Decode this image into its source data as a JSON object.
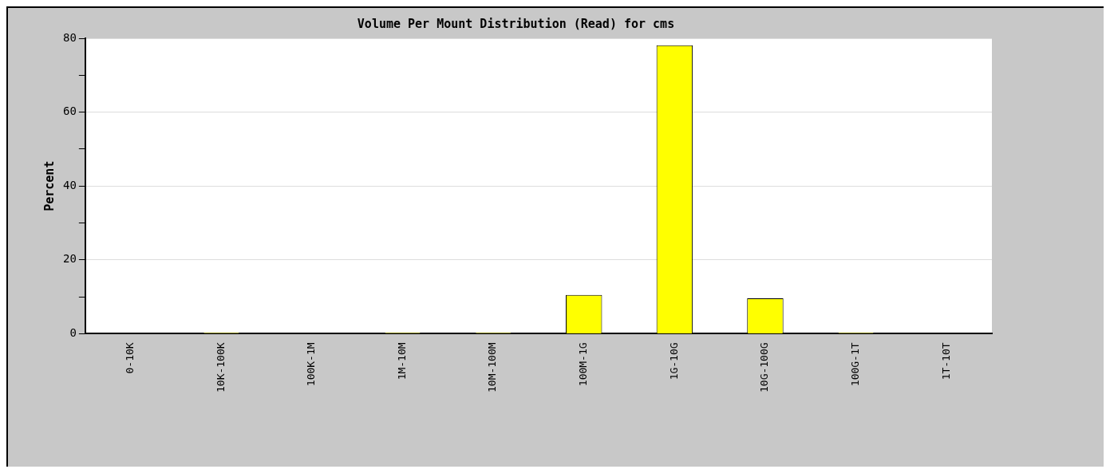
{
  "chart_data": {
    "type": "bar",
    "title": "Volume Per Mount Distribution (Read) for cms",
    "ylabel": "Percent",
    "categories": [
      "0-10K",
      "10K-100K",
      "100K-1M",
      "1M-10M",
      "10M-100M",
      "100M-1G",
      "1G-10G",
      "10G-100G",
      "100G-1T",
      "1T-10T"
    ],
    "values": [
      0,
      0.3,
      0,
      0.3,
      0.3,
      10.5,
      78.1,
      9.6,
      0.3,
      0
    ],
    "color": "#ffff00",
    "ylim": [
      0,
      80
    ],
    "yticks": [
      0,
      {
        "value": 10,
        "label": null
      },
      20,
      {
        "value": 30,
        "label": null
      },
      40,
      {
        "value": 50,
        "label": null
      },
      60,
      {
        "value": 70,
        "label": null
      },
      80
    ],
    "grid": "y",
    "legend": false
  }
}
